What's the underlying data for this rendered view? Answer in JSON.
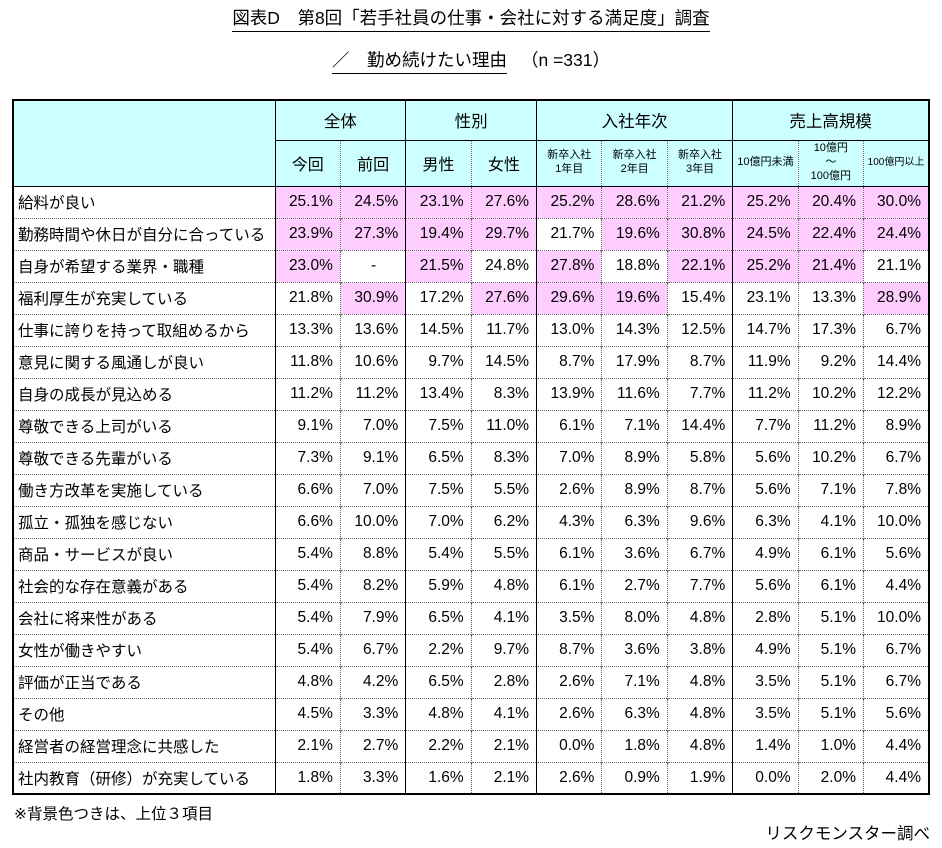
{
  "title": {
    "line1": "図表D　第8回「若手社員の仕事・会社に対する満足度」調査",
    "line2_main": "／　勤め続けたい理由",
    "line2_n": "（n =331）"
  },
  "colors": {
    "header_bg": "#CCFFFF",
    "highlight_bg": "#FFCCFF",
    "border": "#000000"
  },
  "table": {
    "groups": [
      {
        "label": "全体",
        "span": 2
      },
      {
        "label": "性別",
        "span": 2
      },
      {
        "label": "入社年次",
        "span": 3
      },
      {
        "label": "売上高規模",
        "span": 3
      }
    ],
    "sub_headers": [
      "今回",
      "前回",
      "男性",
      "女性",
      "新卒入社\n1年目",
      "新卒入社\n2年目",
      "新卒入社\n3年目",
      "10億円未満",
      "10億円\n～\n100億円",
      "100億円以上"
    ],
    "rows": [
      {
        "label": "給料が良い",
        "values": [
          "25.1%",
          "24.5%",
          "23.1%",
          "27.6%",
          "25.2%",
          "28.6%",
          "21.2%",
          "25.2%",
          "20.4%",
          "30.0%"
        ],
        "highlight": [
          true,
          true,
          true,
          true,
          true,
          true,
          true,
          true,
          true,
          true
        ]
      },
      {
        "label": "勤務時間や休日が自分に合っている",
        "values": [
          "23.9%",
          "27.3%",
          "19.4%",
          "29.7%",
          "21.7%",
          "19.6%",
          "30.8%",
          "24.5%",
          "22.4%",
          "24.4%"
        ],
        "highlight": [
          true,
          true,
          true,
          true,
          false,
          true,
          true,
          true,
          true,
          true
        ]
      },
      {
        "label": "自身が希望する業界・職種",
        "values": [
          "23.0%",
          "-",
          "21.5%",
          "24.8%",
          "27.8%",
          "18.8%",
          "22.1%",
          "25.2%",
          "21.4%",
          "21.1%"
        ],
        "highlight": [
          true,
          false,
          true,
          false,
          true,
          false,
          true,
          true,
          true,
          false
        ]
      },
      {
        "label": "福利厚生が充実している",
        "values": [
          "21.8%",
          "30.9%",
          "17.2%",
          "27.6%",
          "29.6%",
          "19.6%",
          "15.4%",
          "23.1%",
          "13.3%",
          "28.9%"
        ],
        "highlight": [
          false,
          true,
          false,
          true,
          true,
          true,
          false,
          false,
          false,
          true
        ]
      },
      {
        "label": "仕事に誇りを持って取組めるから",
        "values": [
          "13.3%",
          "13.6%",
          "14.5%",
          "11.7%",
          "13.0%",
          "14.3%",
          "12.5%",
          "14.7%",
          "17.3%",
          "6.7%"
        ]
      },
      {
        "label": "意見に関する風通しが良い",
        "values": [
          "11.8%",
          "10.6%",
          "9.7%",
          "14.5%",
          "8.7%",
          "17.9%",
          "8.7%",
          "11.9%",
          "9.2%",
          "14.4%"
        ]
      },
      {
        "label": "自身の成長が見込める",
        "values": [
          "11.2%",
          "11.2%",
          "13.4%",
          "8.3%",
          "13.9%",
          "11.6%",
          "7.7%",
          "11.2%",
          "10.2%",
          "12.2%"
        ]
      },
      {
        "label": "尊敬できる上司がいる",
        "values": [
          "9.1%",
          "7.0%",
          "7.5%",
          "11.0%",
          "6.1%",
          "7.1%",
          "14.4%",
          "7.7%",
          "11.2%",
          "8.9%"
        ]
      },
      {
        "label": "尊敬できる先輩がいる",
        "values": [
          "7.3%",
          "9.1%",
          "6.5%",
          "8.3%",
          "7.0%",
          "8.9%",
          "5.8%",
          "5.6%",
          "10.2%",
          "6.7%"
        ]
      },
      {
        "label": "働き方改革を実施している",
        "values": [
          "6.6%",
          "7.0%",
          "7.5%",
          "5.5%",
          "2.6%",
          "8.9%",
          "8.7%",
          "5.6%",
          "7.1%",
          "7.8%"
        ]
      },
      {
        "label": "孤立・孤独を感じない",
        "values": [
          "6.6%",
          "10.0%",
          "7.0%",
          "6.2%",
          "4.3%",
          "6.3%",
          "9.6%",
          "6.3%",
          "4.1%",
          "10.0%"
        ]
      },
      {
        "label": "商品・サービスが良い",
        "values": [
          "5.4%",
          "8.8%",
          "5.4%",
          "5.5%",
          "6.1%",
          "3.6%",
          "6.7%",
          "4.9%",
          "6.1%",
          "5.6%"
        ]
      },
      {
        "label": "社会的な存在意義がある",
        "values": [
          "5.4%",
          "8.2%",
          "5.9%",
          "4.8%",
          "6.1%",
          "2.7%",
          "7.7%",
          "5.6%",
          "6.1%",
          "4.4%"
        ]
      },
      {
        "label": "会社に将来性がある",
        "values": [
          "5.4%",
          "7.9%",
          "6.5%",
          "4.1%",
          "3.5%",
          "8.0%",
          "4.8%",
          "2.8%",
          "5.1%",
          "10.0%"
        ]
      },
      {
        "label": "女性が働きやすい",
        "values": [
          "5.4%",
          "6.7%",
          "2.2%",
          "9.7%",
          "8.7%",
          "3.6%",
          "3.8%",
          "4.9%",
          "5.1%",
          "6.7%"
        ]
      },
      {
        "label": "評価が正当である",
        "values": [
          "4.8%",
          "4.2%",
          "6.5%",
          "2.8%",
          "2.6%",
          "7.1%",
          "4.8%",
          "3.5%",
          "5.1%",
          "6.7%"
        ]
      },
      {
        "label": "その他",
        "values": [
          "4.5%",
          "3.3%",
          "4.8%",
          "4.1%",
          "2.6%",
          "6.3%",
          "4.8%",
          "3.5%",
          "5.1%",
          "5.6%"
        ]
      },
      {
        "label": "経営者の経営理念に共感した",
        "values": [
          "2.1%",
          "2.7%",
          "2.2%",
          "2.1%",
          "0.0%",
          "1.8%",
          "4.8%",
          "1.4%",
          "1.0%",
          "4.4%"
        ]
      },
      {
        "label": "社内教育（研修）が充実している",
        "values": [
          "1.8%",
          "3.3%",
          "1.6%",
          "2.1%",
          "2.6%",
          "0.9%",
          "1.9%",
          "0.0%",
          "2.0%",
          "4.4%"
        ]
      }
    ]
  },
  "footnote": "※背景色つきは、上位３項目",
  "credit": "リスクモンスター調べ"
}
